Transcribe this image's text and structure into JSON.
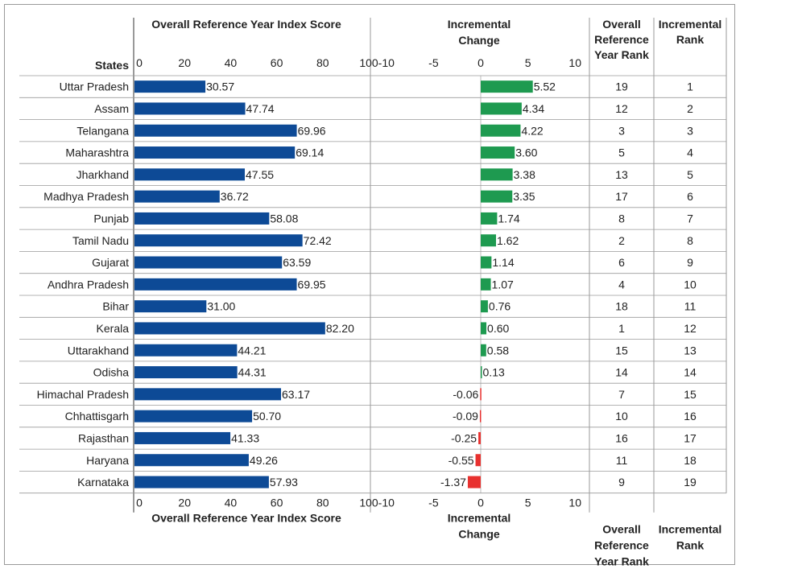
{
  "chart_data": {
    "type": "table",
    "column_headers": {
      "states": "States",
      "score": "Overall Reference Year Index Score",
      "change_line1": "Incremental",
      "change_line2": "Change",
      "ref_rank": [
        "Overall",
        "Reference",
        "Year Rank"
      ],
      "inc_rank": [
        "Incremental",
        "Rank"
      ]
    },
    "score_axis": {
      "range": [
        0,
        100
      ],
      "ticks": [
        "0",
        "20",
        "40",
        "60",
        "80",
        "100"
      ]
    },
    "change_axis": {
      "range": [
        -10,
        10
      ],
      "ticks": [
        "-10",
        "-5",
        "0",
        "5",
        "10"
      ]
    },
    "colors": {
      "score_bar": "#0d4a96",
      "positive_change": "#1e9a50",
      "negative_change": "#e8312f"
    },
    "rows": [
      {
        "state": "Uttar Pradesh",
        "score": 30.57,
        "score_label": "30.57",
        "change": 5.52,
        "change_label": "5.52",
        "ref_rank": "19",
        "inc_rank": "1"
      },
      {
        "state": "Assam",
        "score": 47.74,
        "score_label": "47.74",
        "change": 4.34,
        "change_label": "4.34",
        "ref_rank": "12",
        "inc_rank": "2"
      },
      {
        "state": "Telangana",
        "score": 69.96,
        "score_label": "69.96",
        "change": 4.22,
        "change_label": "4.22",
        "ref_rank": "3",
        "inc_rank": "3"
      },
      {
        "state": "Maharashtra",
        "score": 69.14,
        "score_label": "69.14",
        "change": 3.6,
        "change_label": "3.60",
        "ref_rank": "5",
        "inc_rank": "4"
      },
      {
        "state": "Jharkhand",
        "score": 47.55,
        "score_label": "47.55",
        "change": 3.38,
        "change_label": "3.38",
        "ref_rank": "13",
        "inc_rank": "5"
      },
      {
        "state": "Madhya Pradesh",
        "score": 36.72,
        "score_label": "36.72",
        "change": 3.35,
        "change_label": "3.35",
        "ref_rank": "17",
        "inc_rank": "6"
      },
      {
        "state": "Punjab",
        "score": 58.08,
        "score_label": "58.08",
        "change": 1.74,
        "change_label": "1.74",
        "ref_rank": "8",
        "inc_rank": "7"
      },
      {
        "state": "Tamil Nadu",
        "score": 72.42,
        "score_label": "72.42",
        "change": 1.62,
        "change_label": "1.62",
        "ref_rank": "2",
        "inc_rank": "8"
      },
      {
        "state": "Gujarat",
        "score": 63.59,
        "score_label": "63.59",
        "change": 1.14,
        "change_label": "1.14",
        "ref_rank": "6",
        "inc_rank": "9"
      },
      {
        "state": "Andhra Pradesh",
        "score": 69.95,
        "score_label": "69.95",
        "change": 1.07,
        "change_label": "1.07",
        "ref_rank": "4",
        "inc_rank": "10"
      },
      {
        "state": "Bihar",
        "score": 31.0,
        "score_label": "31.00",
        "change": 0.76,
        "change_label": "0.76",
        "ref_rank": "18",
        "inc_rank": "11"
      },
      {
        "state": "Kerala",
        "score": 82.2,
        "score_label": "82.20",
        "change": 0.6,
        "change_label": "0.60",
        "ref_rank": "1",
        "inc_rank": "12"
      },
      {
        "state": "Uttarakhand",
        "score": 44.21,
        "score_label": "44.21",
        "change": 0.58,
        "change_label": "0.58",
        "ref_rank": "15",
        "inc_rank": "13"
      },
      {
        "state": "Odisha",
        "score": 44.31,
        "score_label": "44.31",
        "change": 0.13,
        "change_label": "0.13",
        "ref_rank": "14",
        "inc_rank": "14"
      },
      {
        "state": "Himachal Pradesh",
        "score": 63.17,
        "score_label": "63.17",
        "change": -0.06,
        "change_label": "-0.06",
        "ref_rank": "7",
        "inc_rank": "15"
      },
      {
        "state": "Chhattisgarh",
        "score": 50.7,
        "score_label": "50.70",
        "change": -0.09,
        "change_label": "-0.09",
        "ref_rank": "10",
        "inc_rank": "16"
      },
      {
        "state": "Rajasthan",
        "score": 41.33,
        "score_label": "41.33",
        "change": -0.25,
        "change_label": "-0.25",
        "ref_rank": "16",
        "inc_rank": "17"
      },
      {
        "state": "Haryana",
        "score": 49.26,
        "score_label": "49.26",
        "change": -0.55,
        "change_label": "-0.55",
        "ref_rank": "11",
        "inc_rank": "18"
      },
      {
        "state": "Karnataka",
        "score": 57.93,
        "score_label": "57.93",
        "change": -1.37,
        "change_label": "-1.37",
        "ref_rank": "9",
        "inc_rank": "19"
      }
    ]
  }
}
